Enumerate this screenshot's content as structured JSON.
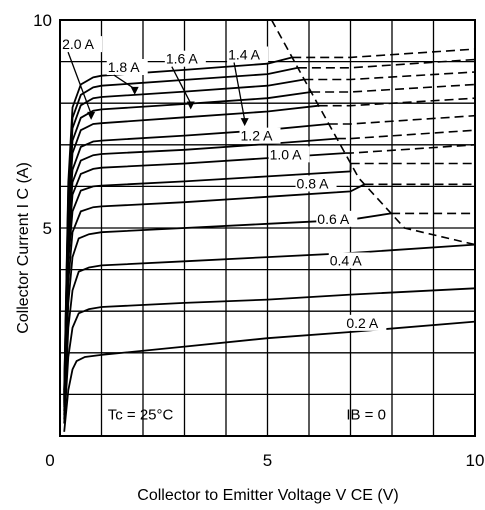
{
  "chart_data": {
    "type": "line",
    "title": "",
    "xlabel": "Collector to Emitter Voltage    V CE  (V)",
    "ylabel": "Collector Current    I C  (A)",
    "xlim": [
      0,
      10
    ],
    "ylim": [
      0,
      10
    ],
    "x_ticks": [
      "0",
      "5",
      "10"
    ],
    "y_ticks": [
      "5",
      "10"
    ],
    "grid": true,
    "annotations": {
      "temperature": "Tc = 25°C",
      "base_zero": "IB  = 0"
    },
    "series": [
      {
        "label": "0.2 A",
        "label_at": [
          6.9,
          2.6
        ],
        "arrow_to": null,
        "points": [
          [
            0.1,
            0.1
          ],
          [
            0.2,
            1.1
          ],
          [
            0.3,
            1.6
          ],
          [
            0.4,
            1.8
          ],
          [
            0.6,
            1.9
          ],
          [
            1,
            1.95
          ],
          [
            3,
            2.15
          ],
          [
            5,
            2.35
          ],
          [
            7,
            2.5
          ],
          [
            10,
            2.75
          ]
        ]
      },
      {
        "label": "",
        "points": [
          [
            0.1,
            0.3
          ],
          [
            0.2,
            1.9
          ],
          [
            0.3,
            2.6
          ],
          [
            0.45,
            2.95
          ],
          [
            0.7,
            3.05
          ],
          [
            1,
            3.1
          ],
          [
            3,
            3.2
          ],
          [
            5,
            3.28
          ],
          [
            7,
            3.4
          ],
          [
            10,
            3.55
          ]
        ]
      },
      {
        "label": "0.4 A",
        "label_at": [
          6.5,
          4.1
        ],
        "arrow_to": null,
        "points": [
          [
            0.1,
            0.4
          ],
          [
            0.2,
            2.6
          ],
          [
            0.3,
            3.5
          ],
          [
            0.45,
            3.95
          ],
          [
            0.7,
            4.05
          ],
          [
            1,
            4.1
          ],
          [
            3,
            4.2
          ],
          [
            5,
            4.3
          ],
          [
            7,
            4.4
          ],
          [
            10,
            4.6
          ]
        ]
      },
      {
        "label": "",
        "points": [
          [
            0.1,
            0.5
          ],
          [
            0.2,
            3.2
          ],
          [
            0.3,
            4.3
          ],
          [
            0.45,
            4.75
          ],
          [
            0.7,
            4.85
          ],
          [
            1,
            4.9
          ],
          [
            3,
            5.0
          ],
          [
            5,
            5.1
          ],
          [
            7,
            5.2
          ],
          [
            10,
            5.35
          ]
        ]
      },
      {
        "label": "0.6 A",
        "label_at": [
          6.2,
          5.1
        ],
        "arrow_to": null,
        "points": [
          [
            0.1,
            0.6
          ],
          [
            0.2,
            3.7
          ],
          [
            0.3,
            4.9
          ],
          [
            0.5,
            5.4
          ],
          [
            0.8,
            5.5
          ],
          [
            1,
            5.52
          ],
          [
            3,
            5.62
          ],
          [
            5,
            5.75
          ],
          [
            7,
            5.88
          ],
          [
            10,
            6.05
          ]
        ]
      },
      {
        "label": "",
        "points": [
          [
            0.1,
            0.7
          ],
          [
            0.2,
            4.2
          ],
          [
            0.3,
            5.4
          ],
          [
            0.5,
            5.9
          ],
          [
            0.8,
            6.0
          ],
          [
            1,
            6.02
          ],
          [
            3,
            6.12
          ],
          [
            5,
            6.24
          ],
          [
            7,
            6.36
          ],
          [
            10,
            6.55
          ]
        ]
      },
      {
        "label": "0.8 A",
        "label_at": [
          5.7,
          5.95
        ],
        "arrow_to": null,
        "points": [
          [
            0.1,
            0.75
          ],
          [
            0.2,
            4.5
          ],
          [
            0.3,
            5.8
          ],
          [
            0.5,
            6.3
          ],
          [
            0.8,
            6.42
          ],
          [
            1,
            6.45
          ],
          [
            3,
            6.55
          ],
          [
            5,
            6.68
          ],
          [
            7,
            6.8
          ],
          [
            10,
            7.0
          ]
        ]
      },
      {
        "label": "",
        "points": [
          [
            0.1,
            0.8
          ],
          [
            0.2,
            4.8
          ],
          [
            0.3,
            6.1
          ],
          [
            0.5,
            6.62
          ],
          [
            0.8,
            6.75
          ],
          [
            1,
            6.78
          ],
          [
            3,
            6.88
          ],
          [
            5,
            7.02
          ],
          [
            7,
            7.15
          ],
          [
            10,
            7.35
          ]
        ]
      },
      {
        "label": "1.0 A",
        "label_at": [
          5.05,
          6.65
        ],
        "arrow_to": null,
        "points": [
          [
            0.1,
            0.85
          ],
          [
            0.2,
            5.0
          ],
          [
            0.3,
            6.4
          ],
          [
            0.5,
            6.95
          ],
          [
            0.8,
            7.08
          ],
          [
            1,
            7.1
          ],
          [
            3,
            7.22
          ],
          [
            5,
            7.36
          ],
          [
            7,
            7.5
          ],
          [
            10,
            7.7
          ]
        ]
      },
      {
        "label": "1.2 A",
        "label_at": [
          4.35,
          7.1
        ],
        "arrow_to": null,
        "points": [
          [
            0.1,
            0.9
          ],
          [
            0.2,
            5.3
          ],
          [
            0.3,
            6.8
          ],
          [
            0.5,
            7.35
          ],
          [
            0.8,
            7.5
          ],
          [
            1,
            7.52
          ],
          [
            3,
            7.66
          ],
          [
            5,
            7.8
          ],
          [
            7,
            7.94
          ],
          [
            10,
            8.12
          ]
        ]
      },
      {
        "label": "1.4 A",
        "label_at": [
          4.05,
          9.05
        ],
        "arrow_to": [
          4.45,
          7.45
        ],
        "points": [
          [
            0.1,
            0.95
          ],
          [
            0.2,
            5.5
          ],
          [
            0.3,
            7.1
          ],
          [
            0.5,
            7.65
          ],
          [
            0.8,
            7.82
          ],
          [
            1,
            7.85
          ],
          [
            3,
            7.98
          ],
          [
            5,
            8.12
          ],
          [
            7,
            8.27
          ],
          [
            10,
            8.45
          ]
        ]
      },
      {
        "label": "1.6 A",
        "label_at": [
          2.55,
          8.95
        ],
        "arrow_to": [
          3.15,
          7.85
        ],
        "points": [
          [
            0.1,
            1.0
          ],
          [
            0.2,
            5.7
          ],
          [
            0.3,
            7.4
          ],
          [
            0.5,
            7.95
          ],
          [
            0.8,
            8.12
          ],
          [
            1,
            8.15
          ],
          [
            3,
            8.28
          ],
          [
            5,
            8.42
          ],
          [
            7,
            8.57
          ],
          [
            10,
            8.75
          ]
        ]
      },
      {
        "label": "1.8 A",
        "label_at": [
          1.15,
          8.75
        ],
        "arrow_to": [
          1.8,
          8.2
        ],
        "points": [
          [
            0.1,
            1.05
          ],
          [
            0.2,
            5.9
          ],
          [
            0.3,
            7.65
          ],
          [
            0.5,
            8.2
          ],
          [
            0.8,
            8.38
          ],
          [
            1,
            8.42
          ],
          [
            3,
            8.56
          ],
          [
            5,
            8.7
          ],
          [
            7,
            8.85
          ],
          [
            10,
            9.05
          ]
        ]
      },
      {
        "label": "2.0 A",
        "label_at": [
          0.05,
          9.3
        ],
        "arrow_to": [
          0.75,
          7.6
        ],
        "points": [
          [
            0.1,
            1.1
          ],
          [
            0.2,
            6.1
          ],
          [
            0.3,
            7.9
          ],
          [
            0.5,
            8.45
          ],
          [
            0.8,
            8.62
          ],
          [
            1,
            8.66
          ],
          [
            3,
            8.8
          ],
          [
            5,
            8.95
          ],
          [
            7,
            9.1
          ],
          [
            10,
            9.3
          ]
        ]
      }
    ],
    "boundary": {
      "style": "dashed",
      "points": [
        [
          5.1,
          10.0
        ],
        [
          6.2,
          8.0
        ],
        [
          7.2,
          6.2
        ],
        [
          8.3,
          5.0
        ],
        [
          10,
          4.6
        ]
      ]
    }
  }
}
